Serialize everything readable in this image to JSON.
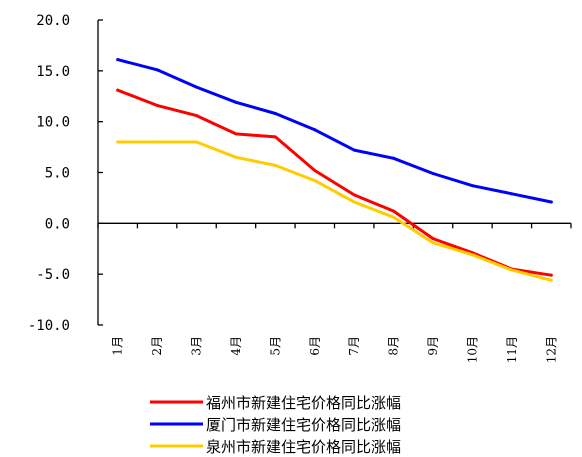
{
  "chart_data": {
    "type": "line",
    "categories": [
      "1月",
      "2月",
      "3月",
      "4月",
      "5月",
      "6月",
      "7月",
      "8月",
      "9月",
      "10月",
      "11月",
      "12月"
    ],
    "ylim": [
      -10,
      20
    ],
    "yticks": [
      "20.0",
      "15.0",
      "10.0",
      "5.0",
      "0.0",
      "-5.0",
      "-10.0"
    ],
    "ytick_values": [
      20,
      15,
      10,
      5,
      0,
      -5,
      -10
    ],
    "grid": false,
    "legend_position": "bottom",
    "series": [
      {
        "name": "福州市新建住宅价格同比涨幅",
        "color": "#ff0000",
        "values": [
          13.1,
          11.6,
          10.6,
          8.8,
          8.5,
          5.2,
          2.8,
          1.2,
          -1.5,
          -2.9,
          -4.5,
          -5.1
        ]
      },
      {
        "name": "厦门市新建住宅价格同比涨幅",
        "color": "#0000ff",
        "values": [
          16.1,
          15.1,
          13.4,
          11.9,
          10.8,
          9.2,
          7.2,
          6.4,
          4.9,
          3.7,
          2.9,
          2.1
        ]
      },
      {
        "name": "泉州市新建住宅价格同比涨幅",
        "color": "#ffcc00",
        "values": [
          8.0,
          8.0,
          8.0,
          6.5,
          5.7,
          4.2,
          2.1,
          0.6,
          -1.9,
          -3.1,
          -4.6,
          -5.6
        ]
      }
    ]
  }
}
